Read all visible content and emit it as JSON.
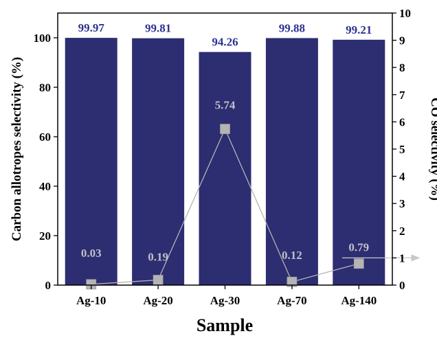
{
  "chart_data": {
    "type": "bar",
    "categories": [
      "Ag-10",
      "Ag-20",
      "Ag-30",
      "Ag-70",
      "Ag-140"
    ],
    "xlabel": "Sample",
    "ylabel": "Carbon allotropes selectivity (%)",
    "y2label": "CO selectivity (%)",
    "ylim": [
      0,
      110
    ],
    "y2lim": [
      0,
      10
    ],
    "yticks": [
      "0",
      "20",
      "40",
      "60",
      "80",
      "100"
    ],
    "y2ticks": [
      "0",
      "1",
      "2",
      "3",
      "4",
      "5",
      "6",
      "7",
      "8",
      "9",
      "10"
    ],
    "series": [
      {
        "axis": "left",
        "type": "bar",
        "values": [
          99.97,
          99.81,
          94.26,
          99.88,
          99.21
        ],
        "labels": [
          "99.97",
          "99.81",
          "94.26",
          "99.88",
          "99.21"
        ],
        "color": "#2d2d72",
        "label_color": "#2e3192"
      },
      {
        "axis": "right",
        "type": "line",
        "values": [
          0.03,
          0.19,
          5.74,
          0.12,
          0.79
        ],
        "labels": [
          "0.03",
          "0.19",
          "5.74",
          "0.12",
          "0.79"
        ],
        "color": "#b4b4b4",
        "label_color": "#c0c0c8"
      }
    ],
    "annotation": "arrow pointing to right axis",
    "grid": false,
    "legend": "none"
  }
}
